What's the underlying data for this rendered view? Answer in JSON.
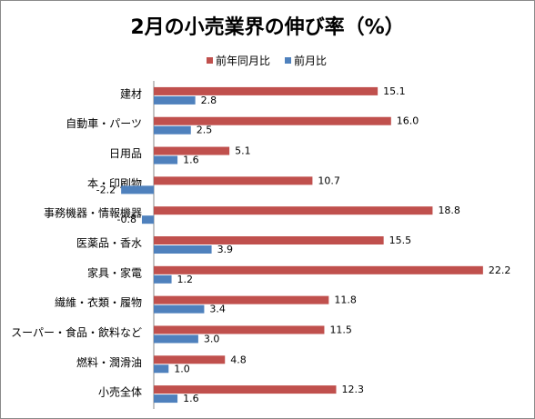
{
  "chart_data": {
    "type": "bar",
    "orientation": "horizontal",
    "title": "2月の小売業界の伸び率（%）",
    "categories": [
      "建材",
      "自動車・パーツ",
      "日用品",
      "本・印刷物",
      "事務機器・情報機器",
      "医薬品・香水",
      "家具・家電",
      "繊維・衣類・履物",
      "スーパー・食品・飲料など",
      "燃料・潤滑油",
      "小売全体"
    ],
    "series": [
      {
        "name": "前年同月比",
        "color": "#c0504d",
        "values": [
          15.1,
          16.0,
          5.1,
          10.7,
          18.8,
          15.5,
          22.2,
          11.8,
          11.5,
          4.8,
          12.3
        ]
      },
      {
        "name": "前月比",
        "color": "#4f81bd",
        "values": [
          2.8,
          2.5,
          1.6,
          -2.2,
          -0.8,
          3.9,
          1.2,
          3.4,
          3.0,
          1.0,
          1.6
        ]
      }
    ],
    "value_labels": [
      [
        "15.1",
        "16.0",
        "5.1",
        "10.7",
        "18.8",
        "15.5",
        "22.2",
        "11.8",
        "11.5",
        "4.8",
        "12.3"
      ],
      [
        "2.8",
        "2.5",
        "1.6",
        "-2.2",
        "-0.8",
        "3.9",
        "1.2",
        "3.4",
        "3.0",
        "1.0",
        "1.6"
      ]
    ],
    "legend_position": "top-right",
    "grid": false
  }
}
